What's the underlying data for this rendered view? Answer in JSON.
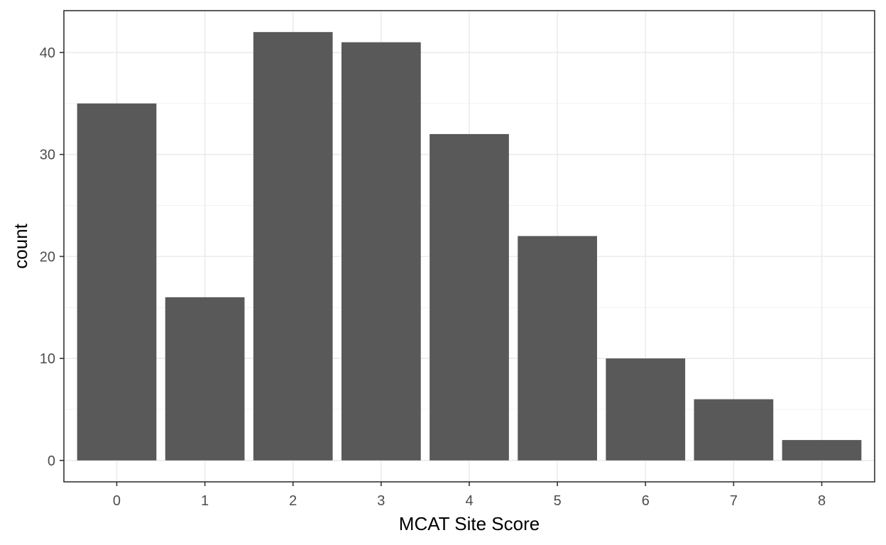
{
  "chart_data": {
    "type": "bar",
    "xlabel": "MCAT Site Score",
    "ylabel": "count",
    "categories": [
      "0",
      "1",
      "2",
      "3",
      "4",
      "5",
      "6",
      "7",
      "8"
    ],
    "values": [
      35,
      16,
      42,
      41,
      32,
      22,
      10,
      6,
      2
    ],
    "ylim": [
      -2.1,
      44.1
    ],
    "yticks": [
      0,
      10,
      20,
      30,
      40
    ],
    "yticks_labels": [
      "0",
      "10",
      "20",
      "30",
      "40"
    ],
    "grid": true,
    "bar_color": "#595959",
    "grid_color": "#ebebeb",
    "minor_grid_color": "#f2f2f2",
    "panel_border_color": "#333333"
  }
}
